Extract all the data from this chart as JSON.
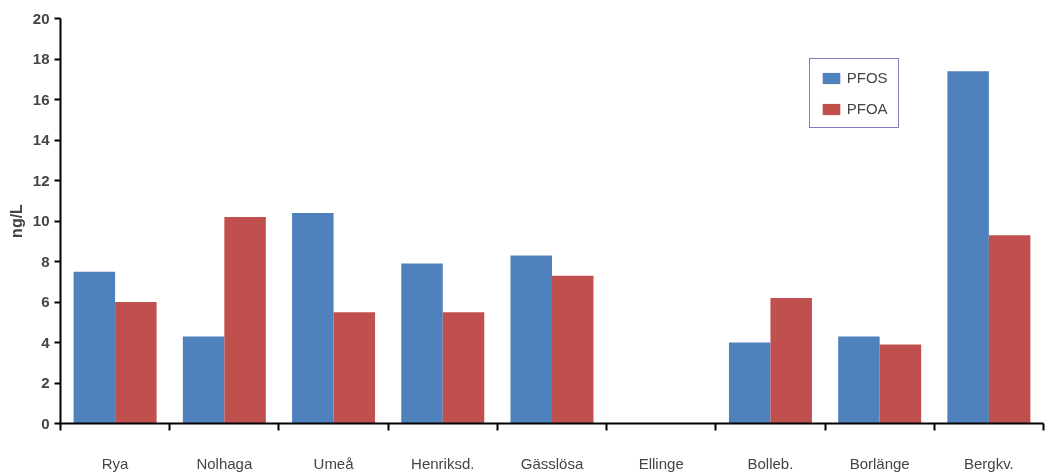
{
  "chart_data": {
    "type": "bar",
    "ylabel": "ng/L",
    "categories": [
      "Rya",
      "Nolhaga",
      "Umeå",
      "Henriksd.",
      "Gässlösa",
      "Ellinge",
      "Bolleb.",
      "Borlänge",
      "Bergkv."
    ],
    "series": [
      {
        "name": "PFOS",
        "color": "#4f81bd",
        "values": [
          7.5,
          4.3,
          10.4,
          7.9,
          8.3,
          null,
          4.0,
          4.3,
          17.4
        ]
      },
      {
        "name": "PFOA",
        "color": "#c0504d",
        "values": [
          6.0,
          10.2,
          5.5,
          5.5,
          7.3,
          null,
          6.2,
          3.9,
          9.3
        ]
      }
    ],
    "ylim": [
      0,
      20
    ],
    "yticks": [
      0,
      2,
      4,
      6,
      8,
      10,
      12,
      14,
      16,
      18,
      20
    ],
    "grid": false,
    "legend": "top right"
  }
}
